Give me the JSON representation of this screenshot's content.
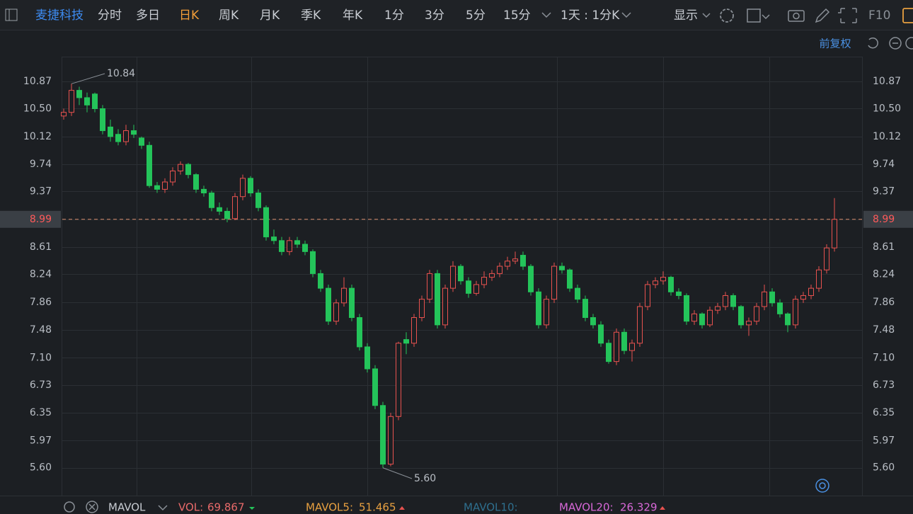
{
  "toolbar": {
    "stock": "麦捷科技",
    "tabs": [
      "分时",
      "多日",
      "日K",
      "周K",
      "月K",
      "季K",
      "年K",
      "1分",
      "3分",
      "5分",
      "15分"
    ],
    "active_tab_index": 2,
    "period": "1天 : 1分K",
    "display": "显示",
    "f10": "F10"
  },
  "adjust": "前复权",
  "indicator_bar": {
    "name": "MAVOL",
    "items": [
      {
        "label": "VOL:",
        "value": "69.867"
      },
      {
        "label": "MAVOL5:",
        "value": "51.465"
      },
      {
        "label": "MAVOL10:"
      },
      {
        "label": "MAVOL20:",
        "value": "26.329"
      }
    ]
  },
  "chart_data": {
    "type": "candlestick",
    "ylim": [
      5.24,
      11.21
    ],
    "yticks": [
      10.87,
      {
        "value": 10.5,
        "label": "10.50"
      },
      10.12,
      9.74,
      9.37,
      8.99,
      8.61,
      8.24,
      7.86,
      7.48,
      {
        "value": 7.1,
        "label": "7.10"
      },
      6.73,
      6.35,
      5.97,
      {
        "value": 5.6,
        "label": "5.60"
      }
    ],
    "grid": true,
    "up_color": "#e8524f",
    "down_color": "#24c45a",
    "high_label": "10.84",
    "low_label": "5.60",
    "last_price": {
      "value": 8.99,
      "label": "8.99"
    },
    "ohlc": [
      [
        10.4,
        10.5,
        10.35,
        10.45
      ],
      [
        10.45,
        10.84,
        10.4,
        10.75
      ],
      [
        10.75,
        10.8,
        10.55,
        10.65
      ],
      [
        10.65,
        10.72,
        10.45,
        10.55
      ],
      [
        10.7,
        10.72,
        10.45,
        10.5
      ],
      [
        10.5,
        10.55,
        10.15,
        10.2
      ],
      [
        10.25,
        10.35,
        10.05,
        10.12
      ],
      [
        10.15,
        10.22,
        10.0,
        10.05
      ],
      [
        10.05,
        10.28,
        10.0,
        10.2
      ],
      [
        10.2,
        10.28,
        10.1,
        10.15
      ],
      [
        10.1,
        10.12,
        9.95,
        10.0
      ],
      [
        10.0,
        10.05,
        9.42,
        9.45
      ],
      [
        9.45,
        9.5,
        9.35,
        9.4
      ],
      [
        9.4,
        9.55,
        9.35,
        9.5
      ],
      [
        9.5,
        9.7,
        9.45,
        9.65
      ],
      [
        9.65,
        9.78,
        9.6,
        9.74
      ],
      [
        9.74,
        9.76,
        9.55,
        9.6
      ],
      [
        9.6,
        9.62,
        9.35,
        9.4
      ],
      [
        9.4,
        9.45,
        9.3,
        9.35
      ],
      [
        9.35,
        9.38,
        9.1,
        9.15
      ],
      [
        9.15,
        9.22,
        9.05,
        9.1
      ],
      [
        9.1,
        9.15,
        8.95,
        9.0
      ],
      [
        9.0,
        9.35,
        8.98,
        9.3
      ],
      [
        9.3,
        9.6,
        9.25,
        9.55
      ],
      [
        9.55,
        9.58,
        9.3,
        9.35
      ],
      [
        9.35,
        9.4,
        9.1,
        9.15
      ],
      [
        9.15,
        9.18,
        8.7,
        8.75
      ],
      [
        8.75,
        8.85,
        8.65,
        8.7
      ],
      [
        8.7,
        8.75,
        8.5,
        8.55
      ],
      [
        8.55,
        8.75,
        8.5,
        8.7
      ],
      [
        8.7,
        8.75,
        8.6,
        8.65
      ],
      [
        8.65,
        8.7,
        8.5,
        8.55
      ],
      [
        8.55,
        8.58,
        8.2,
        8.25
      ],
      [
        8.25,
        8.3,
        8.0,
        8.05
      ],
      [
        8.05,
        8.1,
        7.55,
        7.6
      ],
      [
        7.6,
        7.9,
        7.55,
        7.85
      ],
      [
        7.85,
        8.2,
        7.8,
        8.05
      ],
      [
        8.05,
        8.1,
        7.6,
        7.65
      ],
      [
        7.65,
        7.7,
        7.2,
        7.25
      ],
      [
        7.25,
        7.3,
        6.9,
        6.95
      ],
      [
        6.95,
        7.0,
        6.4,
        6.45
      ],
      [
        6.45,
        6.5,
        5.6,
        5.65
      ],
      [
        5.65,
        6.35,
        5.62,
        6.3
      ],
      [
        6.3,
        7.32,
        6.25,
        7.3
      ],
      [
        7.35,
        7.45,
        7.15,
        7.3
      ],
      [
        7.3,
        7.7,
        7.25,
        7.65
      ],
      [
        7.65,
        7.95,
        7.6,
        7.9
      ],
      [
        7.9,
        8.3,
        7.85,
        8.25
      ],
      [
        8.25,
        8.3,
        7.5,
        7.55
      ],
      [
        7.55,
        8.1,
        7.5,
        8.05
      ],
      [
        8.05,
        8.42,
        8.0,
        8.35
      ],
      [
        8.35,
        8.38,
        8.1,
        8.15
      ],
      [
        8.15,
        8.2,
        7.92,
        7.98
      ],
      [
        7.98,
        8.15,
        7.95,
        8.1
      ],
      [
        8.1,
        8.28,
        8.05,
        8.2
      ],
      [
        8.2,
        8.3,
        8.15,
        8.25
      ],
      [
        8.25,
        8.4,
        8.2,
        8.35
      ],
      [
        8.35,
        8.48,
        8.3,
        8.42
      ],
      [
        8.42,
        8.55,
        8.38,
        8.45
      ],
      [
        8.5,
        8.55,
        8.3,
        8.35
      ],
      [
        8.35,
        8.38,
        7.95,
        8.0
      ],
      [
        8.0,
        8.05,
        7.5,
        7.55
      ],
      [
        7.55,
        7.95,
        7.5,
        7.9
      ],
      [
        7.9,
        8.4,
        7.85,
        8.35
      ],
      [
        8.35,
        8.4,
        8.25,
        8.3
      ],
      [
        8.3,
        8.32,
        8.0,
        8.05
      ],
      [
        8.05,
        8.1,
        7.85,
        7.9
      ],
      [
        7.9,
        7.95,
        7.6,
        7.65
      ],
      [
        7.65,
        7.7,
        7.5,
        7.55
      ],
      [
        7.55,
        7.6,
        7.25,
        7.3
      ],
      [
        7.3,
        7.35,
        7.02,
        7.05
      ],
      [
        7.05,
        7.5,
        7.0,
        7.45
      ],
      [
        7.45,
        7.5,
        7.15,
        7.2
      ],
      [
        7.2,
        7.35,
        7.05,
        7.3
      ],
      [
        7.3,
        7.85,
        7.25,
        7.8
      ],
      [
        7.8,
        8.15,
        7.75,
        8.1
      ],
      [
        8.1,
        8.2,
        8.05,
        8.15
      ],
      [
        8.15,
        8.28,
        8.1,
        8.2
      ],
      [
        8.2,
        8.22,
        7.95,
        8.0
      ],
      [
        8.0,
        8.05,
        7.9,
        7.95
      ],
      [
        7.95,
        7.98,
        7.55,
        7.6
      ],
      [
        7.6,
        7.75,
        7.55,
        7.7
      ],
      [
        7.7,
        7.72,
        7.5,
        7.55
      ],
      [
        7.55,
        7.8,
        7.52,
        7.75
      ],
      [
        7.75,
        7.85,
        7.7,
        7.8
      ],
      [
        7.8,
        8.0,
        7.75,
        7.95
      ],
      [
        7.95,
        7.98,
        7.75,
        7.8
      ],
      [
        7.8,
        7.82,
        7.5,
        7.55
      ],
      [
        7.55,
        7.65,
        7.4,
        7.6
      ],
      [
        7.6,
        7.85,
        7.55,
        7.8
      ],
      [
        7.8,
        8.1,
        7.75,
        8.0
      ],
      [
        8.0,
        8.05,
        7.8,
        7.85
      ],
      [
        7.85,
        7.9,
        7.65,
        7.7
      ],
      [
        7.7,
        7.72,
        7.45,
        7.55
      ],
      [
        7.55,
        7.95,
        7.5,
        7.9
      ],
      [
        7.9,
        8.0,
        7.85,
        7.95
      ],
      [
        7.95,
        8.1,
        7.9,
        8.05
      ],
      [
        8.05,
        8.35,
        8.0,
        8.3
      ],
      [
        8.3,
        8.65,
        8.25,
        8.6
      ],
      [
        8.6,
        9.28,
        8.55,
        8.99
      ]
    ]
  }
}
